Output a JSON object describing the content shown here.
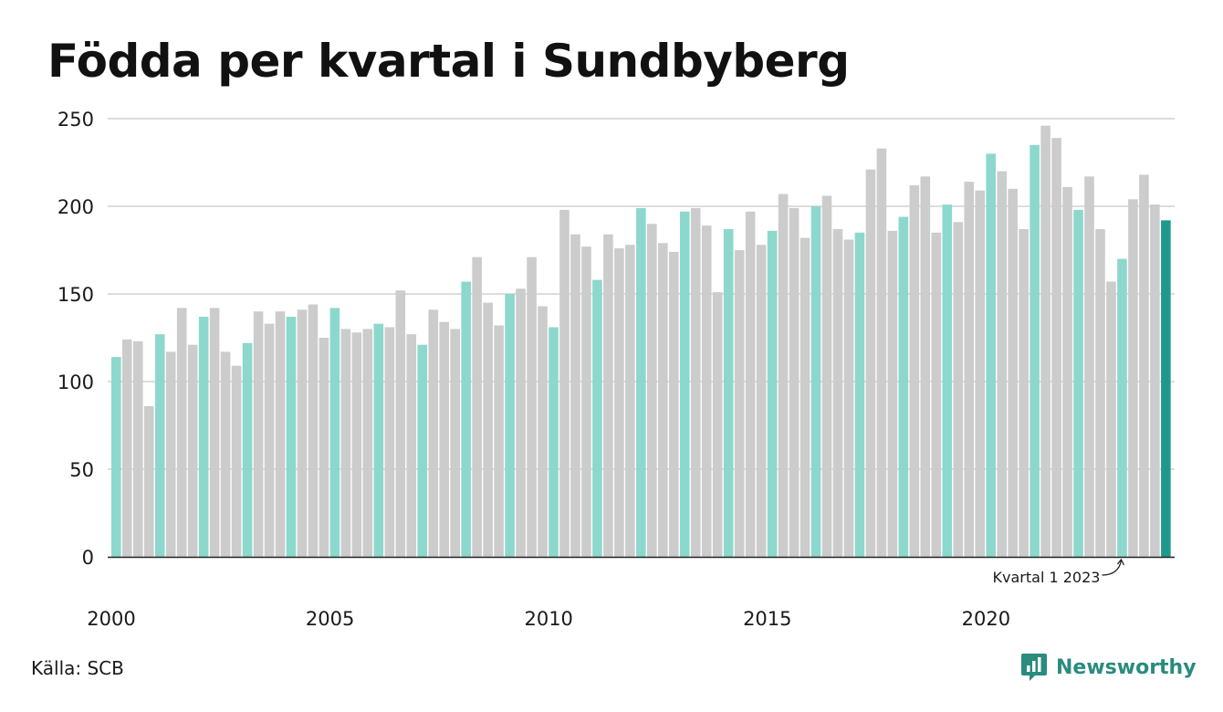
{
  "title": "Födda per kvartal i Sundbyberg",
  "source": "Källa: SCB",
  "brand": {
    "name": "Newsworthy",
    "icon": "newsworthy-logo-icon"
  },
  "colors": {
    "q1": "#8dd8cc",
    "other": "#cccccc",
    "highlight": "#1f9a8a",
    "grid": "#dddddd",
    "axis": "#222222"
  },
  "chart_data": {
    "type": "bar",
    "title": "Födda per kvartal i Sundbyberg",
    "xlabel": "",
    "ylabel": "",
    "ylim": [
      0,
      250
    ],
    "yticks": [
      0,
      50,
      100,
      150,
      200,
      250
    ],
    "xtick_labels": [
      "2000",
      "2005",
      "2010",
      "2015",
      "2020"
    ],
    "grid": true,
    "start_year": 2000,
    "quarters_per_year": 4,
    "values": [
      114,
      124,
      123,
      86,
      127,
      117,
      142,
      121,
      137,
      142,
      117,
      109,
      122,
      140,
      133,
      140,
      137,
      141,
      144,
      125,
      142,
      130,
      128,
      130,
      133,
      131,
      152,
      127,
      121,
      141,
      134,
      130,
      157,
      171,
      145,
      132,
      150,
      153,
      171,
      143,
      131,
      198,
      184,
      177,
      158,
      184,
      176,
      178,
      199,
      190,
      179,
      174,
      197,
      199,
      189,
      151,
      187,
      175,
      197,
      178,
      186,
      207,
      199,
      182,
      200,
      206,
      187,
      181,
      185,
      221,
      233,
      186,
      194,
      212,
      217,
      185,
      201,
      191,
      214,
      209,
      230,
      220,
      210,
      187,
      235,
      246,
      239,
      211,
      198,
      217,
      187,
      157,
      170,
      204,
      218,
      201,
      192
    ],
    "annotation": {
      "text": "Kvartal 1 2023",
      "index": 92
    }
  }
}
